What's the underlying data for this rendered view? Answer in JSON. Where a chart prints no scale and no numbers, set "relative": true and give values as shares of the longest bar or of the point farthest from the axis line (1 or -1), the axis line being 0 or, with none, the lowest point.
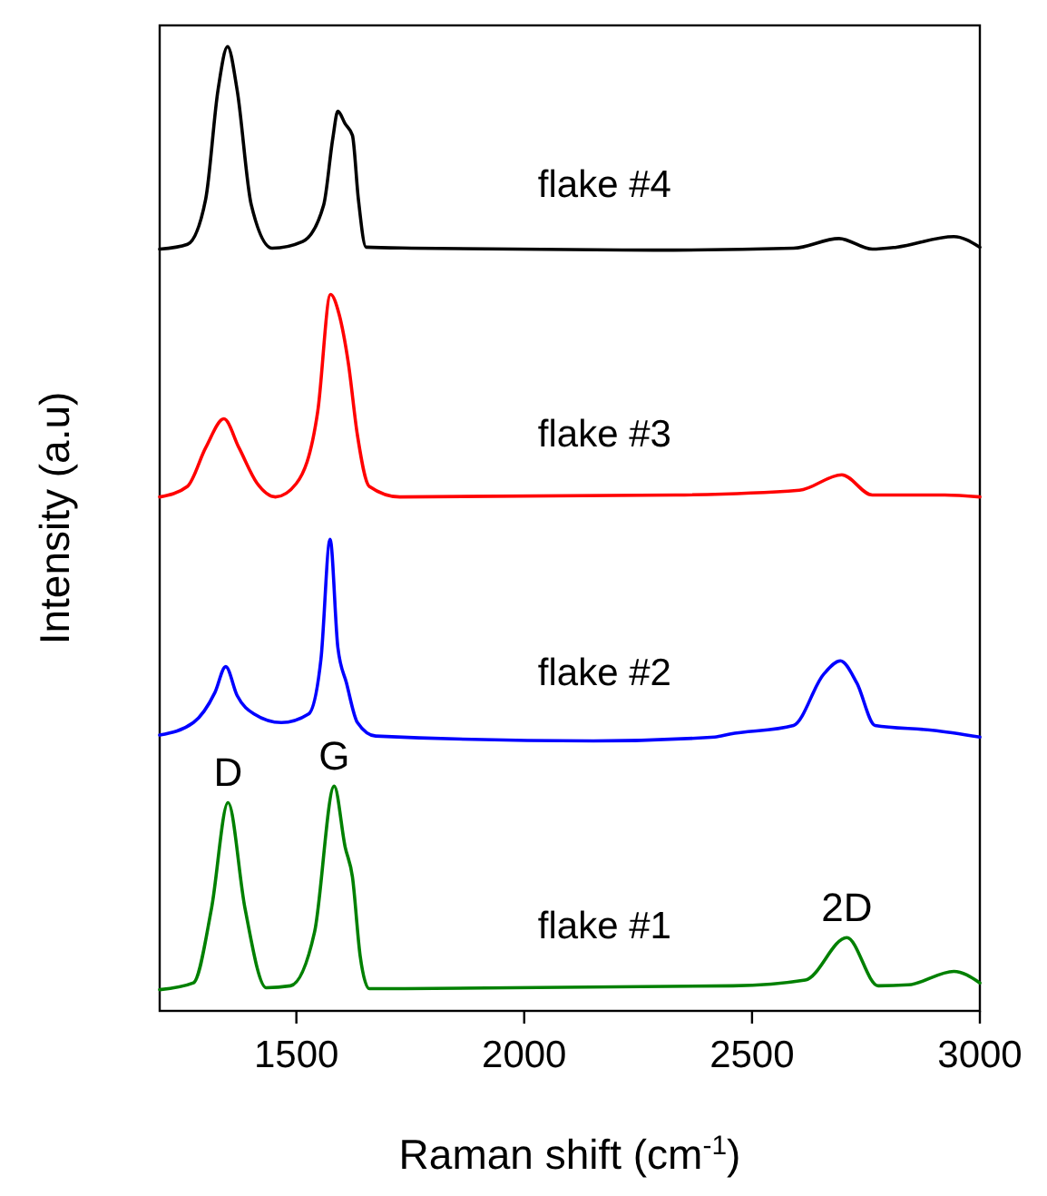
{
  "chart_data": {
    "type": "line",
    "relative": true,
    "xlabel": "Raman shift (cm$^{-1}$)",
    "ylabel": "Intensity (a.u)",
    "xlim": [
      1200,
      3000
    ],
    "xticks": [
      1500,
      2000,
      2500,
      3000
    ],
    "grid": false,
    "marker": "none",
    "line_style": "solid",
    "tick_labels": "x",
    "series": [
      {
        "name": "flake #1",
        "color": "#008000",
        "x": [
          1200,
          1274,
          1314,
          1350,
          1387,
          1434,
          1487,
          1540,
          1583,
          1607,
          1623,
          1640,
          1660,
          2458,
          2617,
          2708,
          2777,
          2843,
          2943,
          3000
        ],
        "values": [
          0.022,
          0.029,
          0.107,
          0.216,
          0.107,
          0.024,
          0.026,
          0.082,
          0.233,
          0.17,
          0.139,
          0.057,
          0.023,
          0.026,
          0.032,
          0.076,
          0.026,
          0.027,
          0.041,
          0.029
        ]
      },
      {
        "name": "flake #2",
        "color": "#0000ff",
        "x": [
          1200,
          1274,
          1321,
          1345,
          1370,
          1407,
          1467,
          1527,
          1554,
          1574,
          1591,
          1610,
          1634,
          1674,
          2152,
          2418,
          2451,
          2591,
          2657,
          2694,
          2730,
          2770,
          2896,
          3000
        ],
        "values": [
          0.286,
          0.299,
          0.33,
          0.357,
          0.327,
          0.308,
          0.299,
          0.308,
          0.365,
          0.489,
          0.377,
          0.34,
          0.299,
          0.285,
          0.28,
          0.284,
          0.287,
          0.296,
          0.349,
          0.363,
          0.34,
          0.296,
          0.291,
          0.284
        ]
      },
      {
        "name": "flake #3",
        "color": "#ff0000",
        "x": [
          1200,
          1261,
          1301,
          1341,
          1374,
          1414,
          1454,
          1500,
          1547,
          1575,
          1594,
          1614,
          1634,
          1660,
          1727,
          2332,
          2604,
          2697,
          2764,
          2923,
          3000
        ],
        "values": [
          0.533,
          0.544,
          0.584,
          0.614,
          0.584,
          0.547,
          0.533,
          0.547,
          0.622,
          0.743,
          0.722,
          0.672,
          0.597,
          0.544,
          0.533,
          0.535,
          0.54,
          0.556,
          0.535,
          0.535,
          0.533
        ]
      },
      {
        "name": "flake #4",
        "color": "#000000",
        "x": [
          1200,
          1261,
          1301,
          1328,
          1349,
          1370,
          1401,
          1447,
          1514,
          1560,
          1580,
          1591,
          1607,
          1623,
          1636,
          1653,
          1753,
          2285,
          2591,
          2691,
          2764,
          2817,
          2943,
          3000
        ],
        "values": [
          0.79,
          0.795,
          0.842,
          0.955,
          1.0,
          0.955,
          0.836,
          0.791,
          0.798,
          0.836,
          0.905,
          0.933,
          0.92,
          0.908,
          0.842,
          0.792,
          0.791,
          0.789,
          0.791,
          0.801,
          0.79,
          0.792,
          0.803,
          0.792
        ]
      }
    ],
    "annotations": [
      {
        "text": "D",
        "x": 1350,
        "y": 0.216
      },
      {
        "text": "G",
        "x": 1583,
        "y": 0.233
      },
      {
        "text": "2D",
        "x": 2708,
        "y": 0.076
      }
    ]
  }
}
